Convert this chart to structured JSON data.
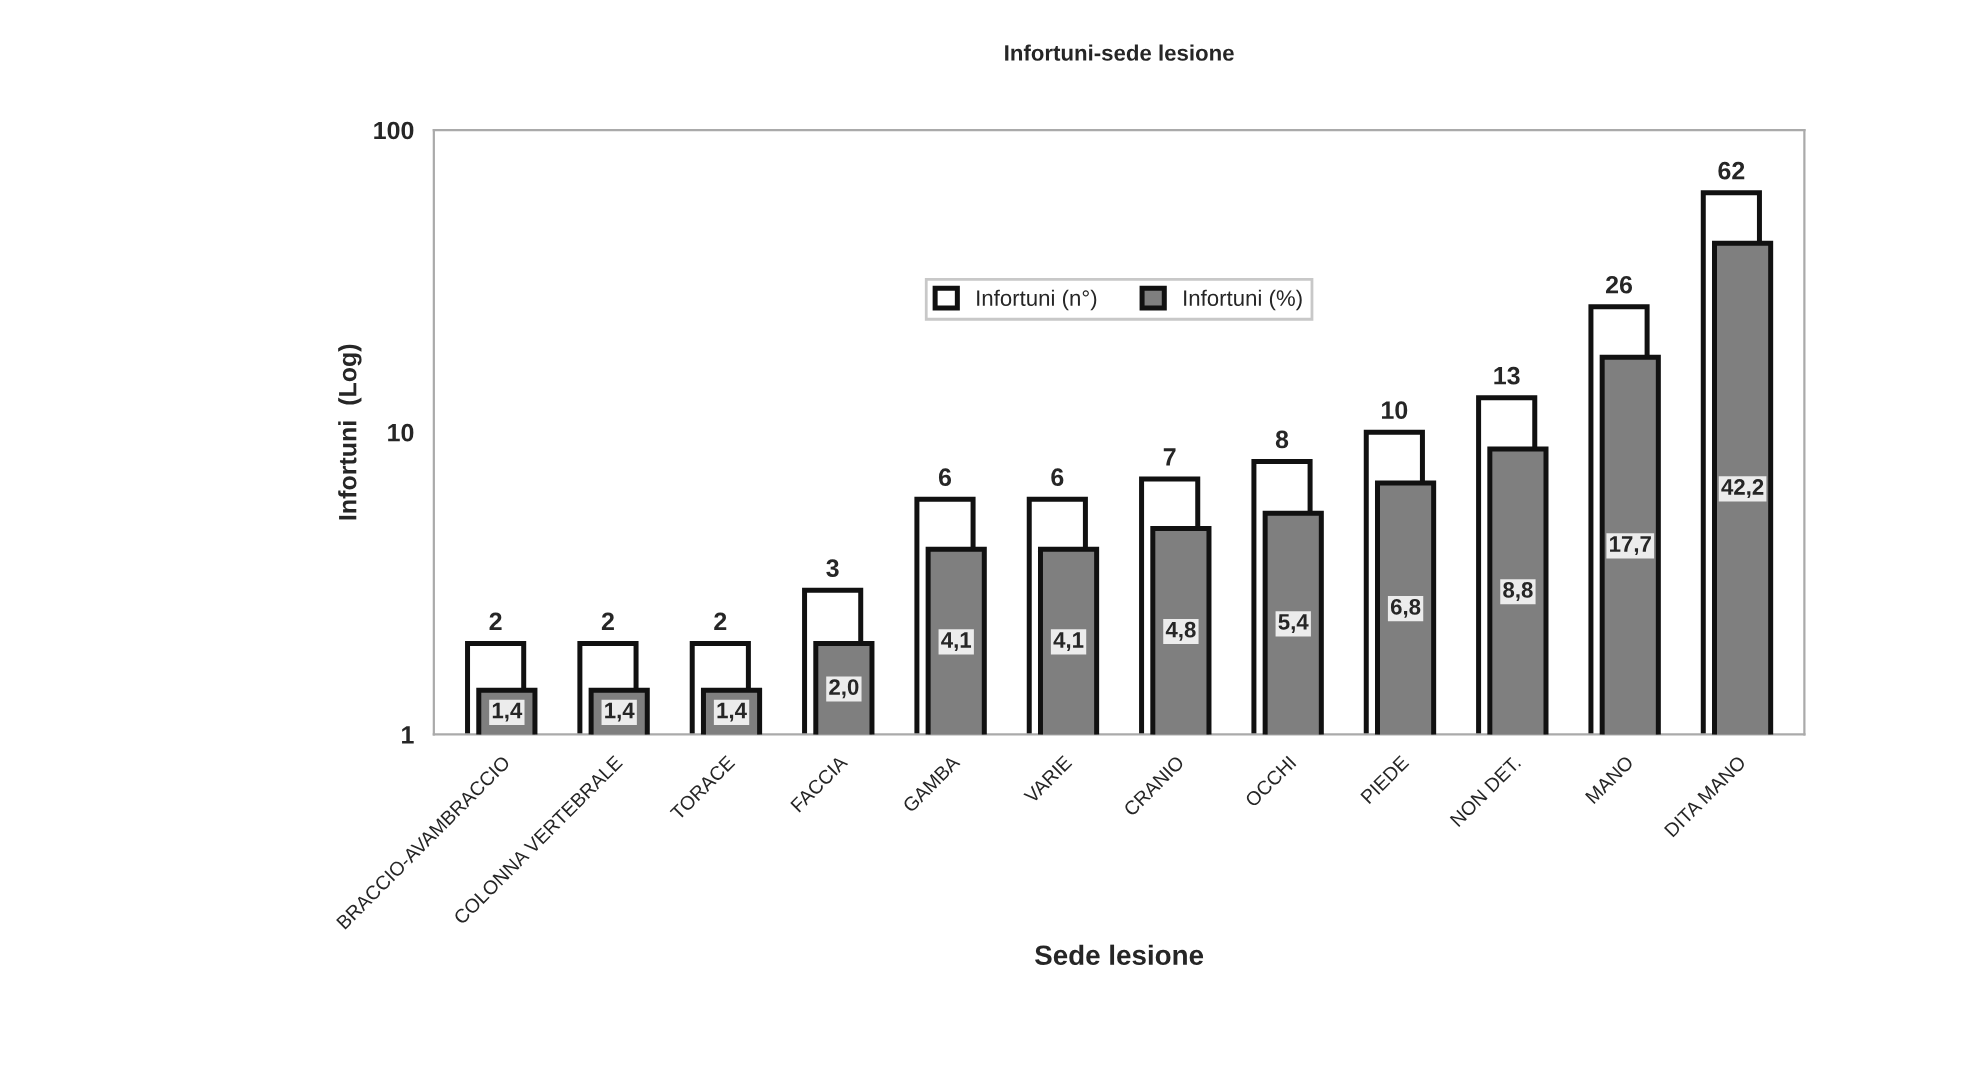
{
  "chart_data": {
    "type": "bar",
    "title": "Infortuni-sede lesione",
    "xlabel": "Sede lesione",
    "ylabel": "Infortuni  (Log)",
    "categories": [
      "BRACCIO-AVAMBRACCIO",
      "COLONNA VERTEBRALE",
      "TORACE",
      "FACCIA",
      "GAMBA",
      "VARIE",
      "CRANIO",
      "OCCHI",
      "PIEDE",
      "NON DET.",
      "MANO",
      "DITA MANO"
    ],
    "series": [
      {
        "name": "Infortuni (n°)",
        "color": "#ffffff",
        "values": [
          2,
          2,
          2,
          3,
          6,
          6,
          7,
          8,
          10,
          13,
          26,
          62
        ],
        "value_labels": [
          "2",
          "2",
          "2",
          "3",
          "6",
          "6",
          "7",
          "8",
          "10",
          "13",
          "26",
          "62"
        ]
      },
      {
        "name": "Infortuni (%)",
        "color": "#7f7f7f",
        "values": [
          1.4,
          1.4,
          1.4,
          2.0,
          4.1,
          4.1,
          4.8,
          5.4,
          6.8,
          8.8,
          17.7,
          42.2
        ],
        "value_labels": [
          "1,4",
          "1,4",
          "1,4",
          "2,0",
          "4,1",
          "4,1",
          "4,8",
          "5,4",
          "6,8",
          "8,8",
          "17,7",
          "42,2"
        ]
      }
    ],
    "log": true,
    "ylim": [
      1,
      100
    ],
    "yticks": [
      1,
      10,
      100
    ],
    "grid": false,
    "legend": "top"
  }
}
